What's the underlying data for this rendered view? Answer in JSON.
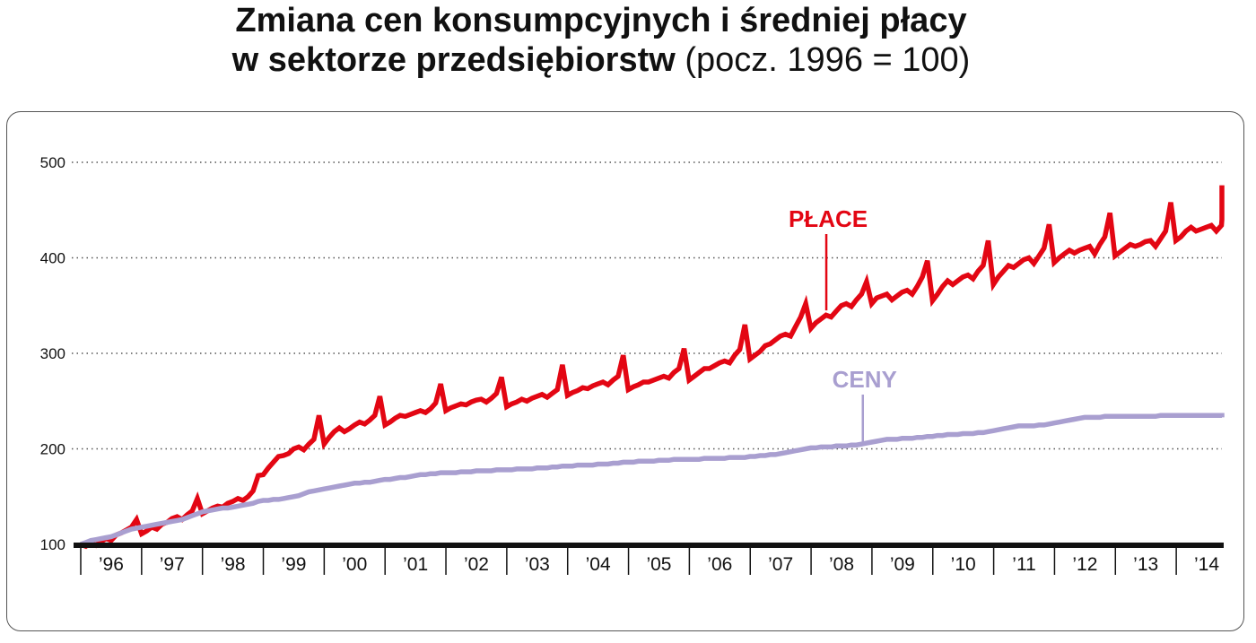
{
  "title_line1": "Zmiana cen konsumpcyjnych i średniej płacy",
  "title_line2_bold": "w sektorze przedsiębiorstw",
  "title_line2_normal": " (pocz. 1996 = 100)",
  "chart_data": {
    "type": "line",
    "title": "Zmiana cen konsumpcyjnych i średniej płacy w sektorze przedsiębiorstw (pocz. 1996 = 100)",
    "ylim": [
      100,
      500
    ],
    "yticks": [
      100,
      200,
      300,
      400,
      500
    ],
    "xlim": [
      1996,
      2014.75
    ],
    "xtick_labels": [
      "'96",
      "'97",
      "'98",
      "'99",
      "'00",
      "'01",
      "'02",
      "'03",
      "'04",
      "'05",
      "'06",
      "'07",
      "'08",
      "'09",
      "'10",
      "'11",
      "'12",
      "'13",
      "'14"
    ],
    "grid": true,
    "colors": {
      "place": "#e30613",
      "ceny": "#a99fd0",
      "grid": "#555555",
      "axis": "#111111"
    },
    "annotations": [
      {
        "text": "PŁACE",
        "series": "place",
        "x": 2008.25,
        "y": 345
      },
      {
        "text": "CENY",
        "series": "ceny",
        "x": 2008.85,
        "y": 205
      }
    ],
    "series": [
      {
        "name": "PŁACE",
        "key": "place",
        "x_start": 1996.0,
        "step": 0.0833,
        "values": [
          100,
          98,
          102,
          99,
          103,
          106,
          104,
          110,
          112,
          115,
          118,
          126,
          111,
          114,
          118,
          116,
          121,
          123,
          127,
          129,
          126,
          131,
          135,
          148,
          132,
          135,
          138,
          140,
          139,
          143,
          145,
          148,
          146,
          150,
          156,
          172,
          173,
          180,
          186,
          192,
          193,
          195,
          200,
          202,
          199,
          205,
          210,
          235,
          205,
          212,
          218,
          222,
          218,
          221,
          225,
          228,
          226,
          230,
          235,
          255,
          225,
          228,
          232,
          235,
          234,
          236,
          238,
          240,
          238,
          242,
          248,
          268,
          240,
          243,
          245,
          247,
          246,
          249,
          251,
          252,
          249,
          253,
          258,
          275,
          244,
          247,
          249,
          252,
          250,
          253,
          255,
          257,
          254,
          258,
          262,
          288,
          256,
          259,
          261,
          264,
          263,
          266,
          268,
          270,
          267,
          272,
          276,
          298,
          262,
          265,
          267,
          270,
          270,
          272,
          274,
          276,
          274,
          280,
          284,
          305,
          272,
          276,
          280,
          284,
          284,
          287,
          290,
          292,
          290,
          298,
          304,
          330,
          294,
          298,
          302,
          308,
          310,
          314,
          318,
          320,
          318,
          328,
          338,
          352,
          326,
          332,
          336,
          340,
          338,
          344,
          350,
          352,
          349,
          356,
          362,
          375,
          352,
          358,
          360,
          362,
          356,
          360,
          364,
          366,
          362,
          370,
          380,
          397,
          355,
          362,
          370,
          376,
          372,
          376,
          380,
          382,
          378,
          386,
          392,
          418,
          372,
          380,
          386,
          392,
          390,
          394,
          398,
          400,
          394,
          402,
          410,
          435,
          395,
          400,
          404,
          408,
          405,
          408,
          410,
          412,
          404,
          414,
          422,
          447,
          402,
          406,
          410,
          414,
          412,
          414,
          417,
          418,
          412,
          420,
          428,
          458,
          418,
          422,
          428,
          432,
          428,
          430,
          432,
          434,
          428,
          434,
          440,
          476
        ]
      },
      {
        "name": "CENY",
        "key": "ceny",
        "x_start": 1996.0,
        "step": 0.0833,
        "values": [
          100,
          102,
          104,
          105,
          106,
          107,
          108,
          110,
          112,
          114,
          116,
          117,
          118,
          119,
          120,
          121,
          122,
          123,
          124,
          125,
          126,
          128,
          130,
          132,
          134,
          135,
          136,
          137,
          138,
          138,
          139,
          140,
          141,
          142,
          143,
          145,
          146,
          146,
          147,
          147,
          148,
          149,
          150,
          151,
          153,
          155,
          156,
          157,
          158,
          159,
          160,
          161,
          162,
          163,
          164,
          164,
          165,
          165,
          166,
          167,
          168,
          168,
          169,
          170,
          170,
          171,
          172,
          173,
          173,
          174,
          174,
          175,
          175,
          175,
          175,
          176,
          176,
          176,
          177,
          177,
          177,
          177,
          178,
          178,
          178,
          178,
          179,
          179,
          179,
          179,
          180,
          180,
          180,
          181,
          181,
          182,
          182,
          182,
          183,
          183,
          183,
          183,
          184,
          184,
          184,
          185,
          185,
          186,
          186,
          186,
          187,
          187,
          187,
          187,
          188,
          188,
          188,
          189,
          189,
          189,
          189,
          189,
          189,
          190,
          190,
          190,
          190,
          190,
          191,
          191,
          191,
          191,
          192,
          192,
          193,
          193,
          194,
          194,
          195,
          196,
          197,
          198,
          199,
          200,
          201,
          201,
          202,
          202,
          202,
          203,
          203,
          203,
          204,
          204,
          205,
          206,
          207,
          208,
          209,
          210,
          210,
          210,
          211,
          211,
          211,
          212,
          212,
          213,
          213,
          214,
          214,
          215,
          215,
          215,
          216,
          216,
          216,
          217,
          217,
          218,
          219,
          220,
          221,
          222,
          223,
          224,
          224,
          224,
          224,
          225,
          225,
          226,
          227,
          228,
          229,
          230,
          231,
          232,
          233,
          233,
          233,
          233,
          234,
          234,
          234,
          234,
          234,
          234,
          234,
          234,
          234,
          234,
          234,
          235,
          235,
          235,
          235,
          235,
          235,
          235,
          235,
          235,
          235,
          235,
          235,
          235,
          235,
          234,
          234,
          233
        ]
      }
    ]
  }
}
